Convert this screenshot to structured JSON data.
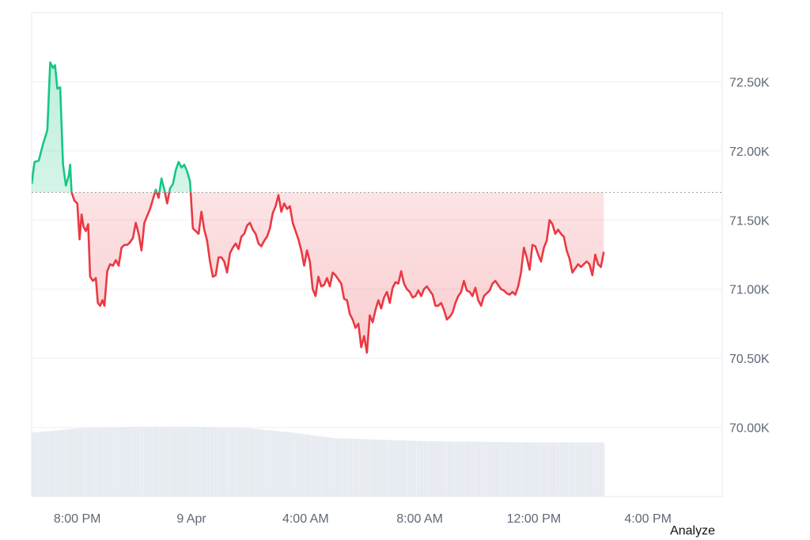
{
  "chart_data": {
    "type": "area",
    "baseline": 71700,
    "ylim": [
      69500,
      73000
    ],
    "yticks": [
      70000,
      70500,
      71000,
      71500,
      72000,
      72500
    ],
    "ytick_labels": [
      "70.00K",
      "70.50K",
      "71.00K",
      "71.50K",
      "72.00K",
      "72.50K"
    ],
    "x_range": [
      -1.6,
      22.6
    ],
    "xticks": [
      0,
      4,
      8,
      12,
      16,
      20
    ],
    "xtick_labels": [
      "8:00 PM",
      "9 Apr",
      "4:00 AM",
      "8:00 AM",
      "12:00 PM",
      "4:00 PM"
    ],
    "grid": true,
    "colors": {
      "above": "#16c784",
      "below": "#ea3943",
      "baseline": "#9a9a9a",
      "volume": "#e3e8ef"
    },
    "points": [
      [
        -1.6,
        71760
      ],
      [
        -1.5,
        71920
      ],
      [
        -1.35,
        71930
      ],
      [
        -1.2,
        72050
      ],
      [
        -1.05,
        72150
      ],
      [
        -0.95,
        72640
      ],
      [
        -0.85,
        72600
      ],
      [
        -0.78,
        72620
      ],
      [
        -0.7,
        72450
      ],
      [
        -0.6,
        72460
      ],
      [
        -0.5,
        71900
      ],
      [
        -0.4,
        71750
      ],
      [
        -0.3,
        71820
      ],
      [
        -0.25,
        71900
      ],
      [
        -0.2,
        71700
      ],
      [
        -0.1,
        71640
      ],
      [
        0.0,
        71620
      ],
      [
        0.08,
        71360
      ],
      [
        0.15,
        71540
      ],
      [
        0.22,
        71450
      ],
      [
        0.3,
        71420
      ],
      [
        0.38,
        71470
      ],
      [
        0.45,
        71090
      ],
      [
        0.55,
        71060
      ],
      [
        0.65,
        71080
      ],
      [
        0.72,
        70900
      ],
      [
        0.8,
        70880
      ],
      [
        0.88,
        70920
      ],
      [
        0.95,
        70880
      ],
      [
        1.05,
        71130
      ],
      [
        1.15,
        71180
      ],
      [
        1.25,
        71170
      ],
      [
        1.35,
        71210
      ],
      [
        1.45,
        71170
      ],
      [
        1.55,
        71300
      ],
      [
        1.65,
        71320
      ],
      [
        1.75,
        71320
      ],
      [
        1.85,
        71340
      ],
      [
        1.95,
        71370
      ],
      [
        2.05,
        71480
      ],
      [
        2.15,
        71400
      ],
      [
        2.25,
        71280
      ],
      [
        2.35,
        71480
      ],
      [
        2.45,
        71530
      ],
      [
        2.55,
        71580
      ],
      [
        2.65,
        71650
      ],
      [
        2.75,
        71720
      ],
      [
        2.85,
        71660
      ],
      [
        2.95,
        71800
      ],
      [
        3.05,
        71720
      ],
      [
        3.15,
        71620
      ],
      [
        3.25,
        71730
      ],
      [
        3.35,
        71760
      ],
      [
        3.45,
        71860
      ],
      [
        3.55,
        71920
      ],
      [
        3.65,
        71880
      ],
      [
        3.75,
        71900
      ],
      [
        3.85,
        71850
      ],
      [
        3.95,
        71780
      ],
      [
        4.05,
        71440
      ],
      [
        4.15,
        71420
      ],
      [
        4.25,
        71400
      ],
      [
        4.35,
        71560
      ],
      [
        4.45,
        71430
      ],
      [
        4.55,
        71350
      ],
      [
        4.65,
        71200
      ],
      [
        4.75,
        71090
      ],
      [
        4.85,
        71100
      ],
      [
        4.95,
        71230
      ],
      [
        5.05,
        71230
      ],
      [
        5.15,
        71200
      ],
      [
        5.25,
        71120
      ],
      [
        5.35,
        71260
      ],
      [
        5.45,
        71300
      ],
      [
        5.55,
        71330
      ],
      [
        5.65,
        71290
      ],
      [
        5.75,
        71380
      ],
      [
        5.85,
        71400
      ],
      [
        5.95,
        71460
      ],
      [
        6.05,
        71480
      ],
      [
        6.15,
        71430
      ],
      [
        6.25,
        71400
      ],
      [
        6.35,
        71330
      ],
      [
        6.45,
        71310
      ],
      [
        6.55,
        71350
      ],
      [
        6.65,
        71380
      ],
      [
        6.75,
        71440
      ],
      [
        6.85,
        71550
      ],
      [
        6.95,
        71600
      ],
      [
        7.05,
        71680
      ],
      [
        7.15,
        71560
      ],
      [
        7.25,
        71620
      ],
      [
        7.35,
        71580
      ],
      [
        7.45,
        71600
      ],
      [
        7.55,
        71480
      ],
      [
        7.65,
        71420
      ],
      [
        7.75,
        71360
      ],
      [
        7.85,
        71280
      ],
      [
        7.95,
        71170
      ],
      [
        8.05,
        71280
      ],
      [
        8.15,
        71200
      ],
      [
        8.25,
        71000
      ],
      [
        8.35,
        70950
      ],
      [
        8.45,
        71090
      ],
      [
        8.55,
        71020
      ],
      [
        8.65,
        71030
      ],
      [
        8.75,
        71080
      ],
      [
        8.85,
        71020
      ],
      [
        8.95,
        71120
      ],
      [
        9.05,
        71100
      ],
      [
        9.15,
        71070
      ],
      [
        9.25,
        71040
      ],
      [
        9.35,
        70930
      ],
      [
        9.45,
        70920
      ],
      [
        9.55,
        70820
      ],
      [
        9.65,
        70780
      ],
      [
        9.75,
        70720
      ],
      [
        9.85,
        70750
      ],
      [
        9.95,
        70580
      ],
      [
        10.05,
        70660
      ],
      [
        10.15,
        70540
      ],
      [
        10.25,
        70810
      ],
      [
        10.35,
        70760
      ],
      [
        10.45,
        70850
      ],
      [
        10.55,
        70920
      ],
      [
        10.65,
        70860
      ],
      [
        10.75,
        70940
      ],
      [
        10.85,
        70980
      ],
      [
        10.95,
        70900
      ],
      [
        11.05,
        71010
      ],
      [
        11.15,
        71050
      ],
      [
        11.25,
        71040
      ],
      [
        11.35,
        71130
      ],
      [
        11.45,
        71040
      ],
      [
        11.55,
        71000
      ],
      [
        11.65,
        70980
      ],
      [
        11.75,
        70940
      ],
      [
        11.85,
        70950
      ],
      [
        11.95,
        70990
      ],
      [
        12.05,
        70950
      ],
      [
        12.15,
        71000
      ],
      [
        12.25,
        71020
      ],
      [
        12.35,
        70990
      ],
      [
        12.45,
        70960
      ],
      [
        12.55,
        70880
      ],
      [
        12.65,
        70880
      ],
      [
        12.75,
        70900
      ],
      [
        12.85,
        70850
      ],
      [
        12.95,
        70780
      ],
      [
        13.05,
        70800
      ],
      [
        13.15,
        70830
      ],
      [
        13.25,
        70900
      ],
      [
        13.35,
        70950
      ],
      [
        13.45,
        70980
      ],
      [
        13.55,
        71060
      ],
      [
        13.65,
        70990
      ],
      [
        13.75,
        70980
      ],
      [
        13.85,
        70950
      ],
      [
        13.95,
        71010
      ],
      [
        14.05,
        70920
      ],
      [
        14.15,
        70880
      ],
      [
        14.25,
        70950
      ],
      [
        14.35,
        70970
      ],
      [
        14.45,
        70990
      ],
      [
        14.55,
        71040
      ],
      [
        14.65,
        71060
      ],
      [
        14.75,
        71030
      ],
      [
        14.85,
        71000
      ],
      [
        14.95,
        70990
      ],
      [
        15.05,
        70970
      ],
      [
        15.15,
        70960
      ],
      [
        15.25,
        70980
      ],
      [
        15.35,
        70960
      ],
      [
        15.45,
        71020
      ],
      [
        15.55,
        71120
      ],
      [
        15.65,
        71300
      ],
      [
        15.75,
        71230
      ],
      [
        15.85,
        71140
      ],
      [
        15.95,
        71320
      ],
      [
        16.05,
        71310
      ],
      [
        16.15,
        71250
      ],
      [
        16.25,
        71200
      ],
      [
        16.35,
        71300
      ],
      [
        16.45,
        71350
      ],
      [
        16.55,
        71500
      ],
      [
        16.65,
        71470
      ],
      [
        16.75,
        71400
      ],
      [
        16.85,
        71430
      ],
      [
        16.95,
        71400
      ],
      [
        17.05,
        71380
      ],
      [
        17.15,
        71280
      ],
      [
        17.25,
        71220
      ],
      [
        17.35,
        71120
      ],
      [
        17.45,
        71150
      ],
      [
        17.55,
        71180
      ],
      [
        17.65,
        71160
      ],
      [
        17.75,
        71180
      ],
      [
        17.85,
        71200
      ],
      [
        17.95,
        71180
      ],
      [
        18.05,
        71100
      ],
      [
        18.15,
        71250
      ],
      [
        18.25,
        71180
      ],
      [
        18.35,
        71160
      ],
      [
        18.45,
        71270
      ]
    ],
    "volume_profile": [
      [
        -1.6,
        0.45
      ],
      [
        -1.0,
        0.46
      ],
      [
        0.0,
        0.48
      ],
      [
        2.0,
        0.49
      ],
      [
        4.0,
        0.49
      ],
      [
        6.0,
        0.48
      ],
      [
        7.5,
        0.45
      ],
      [
        9.0,
        0.41
      ],
      [
        10.5,
        0.4
      ],
      [
        12.0,
        0.39
      ],
      [
        14.0,
        0.385
      ],
      [
        16.0,
        0.38
      ],
      [
        18.45,
        0.38
      ]
    ]
  },
  "ui": {
    "analyze_label": "Analyze"
  }
}
